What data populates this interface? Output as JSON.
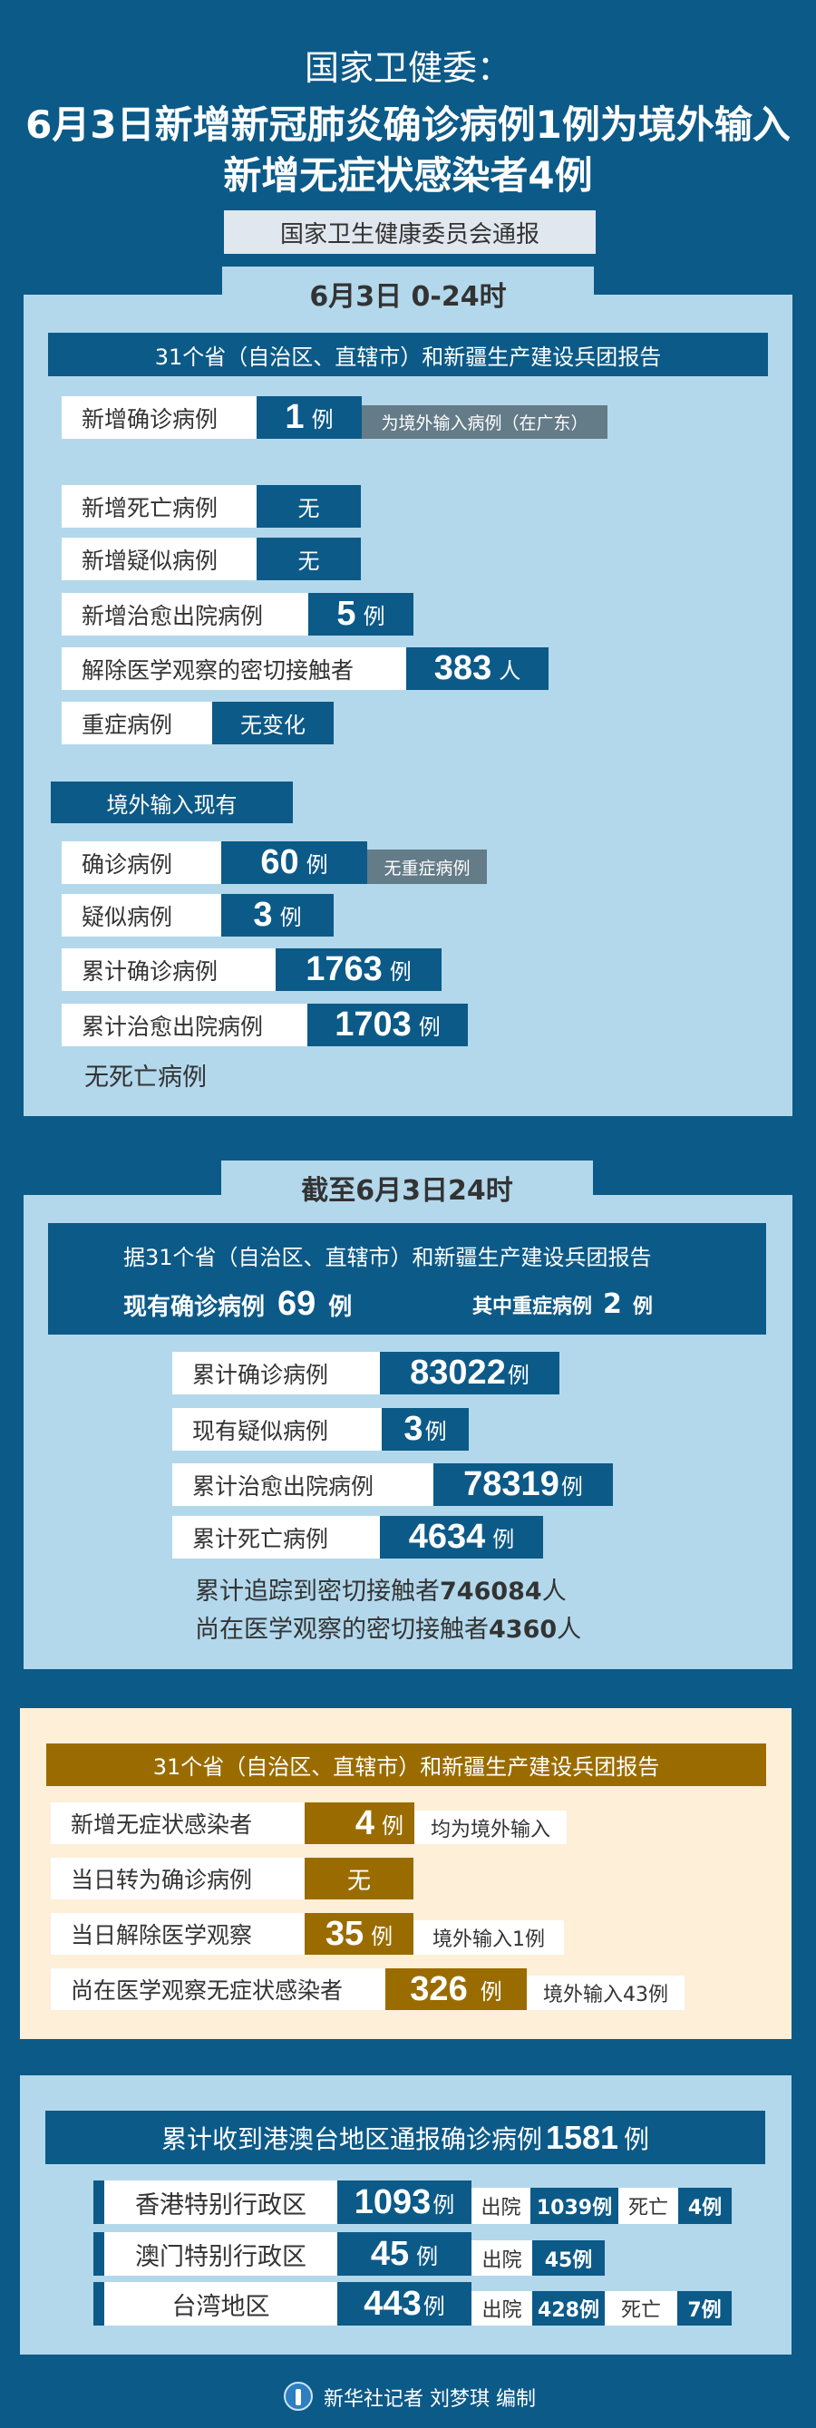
{
  "header": {
    "source": "国家卫健委：",
    "title_line1": "6月3日新增新冠肺炎确诊病例1例为境外输入",
    "title_line2": "新增无症状感染者4例",
    "subtitle": "国家卫生健康委员会通报"
  },
  "colors": {
    "background": "#0c5a88",
    "panel": "#b3d8ec",
    "gold": "#9a6c00",
    "cream": "#fdefd8",
    "note_gray": "#647b88"
  },
  "daily": {
    "tab": "6月3日 0-24时",
    "report_bar": "31个省（自治区、直辖市）和新疆生产建设兵团报告",
    "rows": [
      {
        "label": "新增确诊病例",
        "value": "1",
        "unit": "例",
        "note": "为境外输入病例（在广东）"
      },
      {
        "label": "新增死亡病例",
        "value": "无"
      },
      {
        "label": "新增疑似病例",
        "value": "无"
      },
      {
        "label": "新增治愈出院病例",
        "value": "5",
        "unit": "例"
      },
      {
        "label": "解除医学观察的密切接触者",
        "value": "383",
        "unit": "人"
      },
      {
        "label": "重症病例",
        "value": "无变化"
      }
    ],
    "imported_title": "境外输入现有",
    "imported_rows": [
      {
        "label": "确诊病例",
        "value": "60",
        "unit": "例",
        "note": "无重症病例"
      },
      {
        "label": "疑似病例",
        "value": "3",
        "unit": "例"
      },
      {
        "label": "累计确诊病例",
        "value": "1763",
        "unit": "例"
      },
      {
        "label": "累计治愈出院病例",
        "value": "1703",
        "unit": "例"
      }
    ],
    "no_death": "无死亡病例"
  },
  "cumulative": {
    "tab": "截至6月3日24时",
    "report_line": "据31个省（自治区、直辖市）和新疆生产建设兵团报告",
    "current_label": "现有确诊病例",
    "current_value": "69",
    "current_unit": "例",
    "severe_label": "其中重症病例",
    "severe_value": "2",
    "severe_unit": "例",
    "rows": [
      {
        "label": "累计确诊病例",
        "value": "83022",
        "unit": "例"
      },
      {
        "label": "现有疑似病例",
        "value": "3",
        "unit": "例"
      },
      {
        "label": "累计治愈出院病例",
        "value": "78319",
        "unit": "例"
      },
      {
        "label": "累计死亡病例",
        "value": "4634",
        "unit": "例"
      }
    ],
    "traced_label": "累计追踪到密切接触者",
    "traced_value": "746084",
    "traced_unit": "人",
    "observing_label": "尚在医学观察的密切接触者",
    "observing_value": "4360",
    "observing_unit": "人"
  },
  "asymptomatic": {
    "report_bar": "31个省（自治区、直辖市）和新疆生产建设兵团报告",
    "rows": [
      {
        "label": "新增无症状感染者",
        "value": "4",
        "unit": "例",
        "note": "均为境外输入"
      },
      {
        "label": "当日转为确诊病例",
        "value": "无"
      },
      {
        "label": "当日解除医学观察",
        "value": "35",
        "unit": "例",
        "note": "境外输入1例"
      },
      {
        "label": "尚在医学观察无症状感染者",
        "value": "326",
        "unit": "例",
        "note": "境外输入43例"
      }
    ]
  },
  "hmt": {
    "title": "累计收到港澳台地区通报确诊病例",
    "total": "1581",
    "unit": "例",
    "rows": [
      {
        "region": "香港特别行政区",
        "value": "1093",
        "unit": "例",
        "discharged_label": "出院",
        "discharged": "1039例",
        "death_label": "死亡",
        "deaths": "4例"
      },
      {
        "region": "澳门特别行政区",
        "value": "45",
        "unit": "例",
        "discharged_label": "出院",
        "discharged": "45例"
      },
      {
        "region": "台湾地区",
        "value": "443",
        "unit": "例",
        "discharged_label": "出院",
        "discharged": "428例",
        "death_label": "死亡",
        "deaths": "7例"
      }
    ]
  },
  "footer": {
    "credit": "新华社记者 刘梦琪 编制",
    "logo_icon": "xinhua-logo-icon"
  }
}
